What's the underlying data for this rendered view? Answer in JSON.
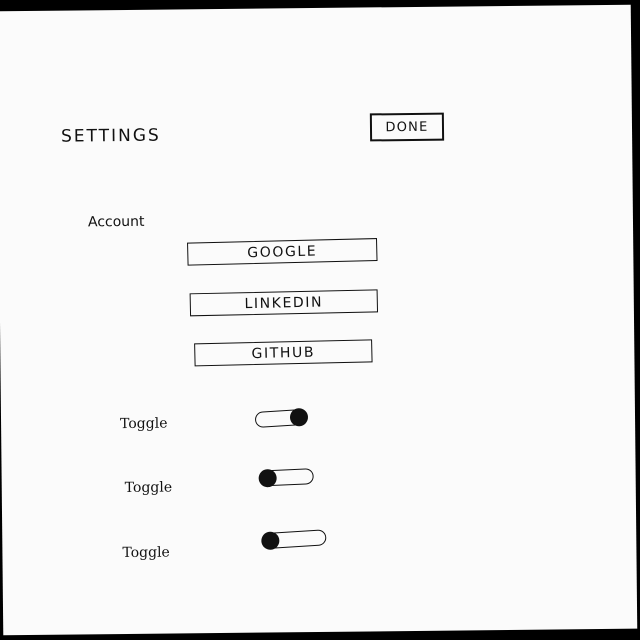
{
  "header": {
    "title": "SETTINGS",
    "done_label": "DONE"
  },
  "account": {
    "label": "Account",
    "buttons": [
      {
        "label": "GOOGLE"
      },
      {
        "label": "LINKEDIN"
      },
      {
        "label": "GITHUB"
      }
    ]
  },
  "toggles": [
    {
      "label": "Toggle",
      "on": true
    },
    {
      "label": "Toggle",
      "on": false
    },
    {
      "label": "Toggle",
      "on": false
    }
  ]
}
